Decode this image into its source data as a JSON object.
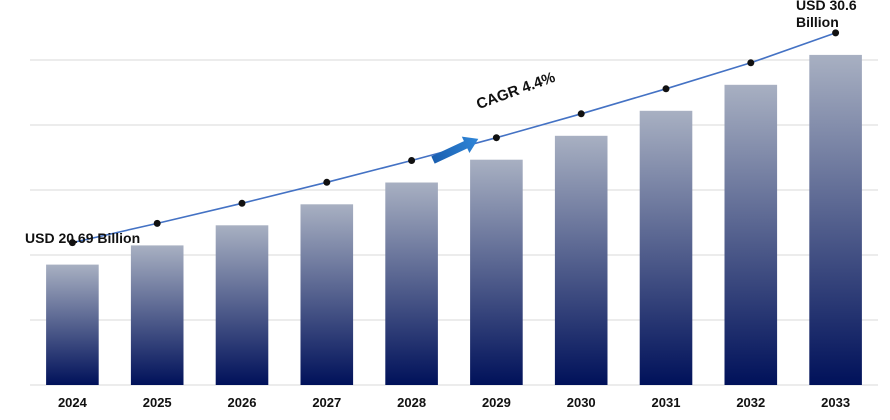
{
  "chart_data": {
    "type": "bar",
    "categories": [
      "2024",
      "2025",
      "2026",
      "2027",
      "2028",
      "2029",
      "2030",
      "2031",
      "2032",
      "2033"
    ],
    "values": [
      20.69,
      21.6,
      22.55,
      23.54,
      24.57,
      25.65,
      26.78,
      27.96,
      29.19,
      30.6
    ],
    "trend_line": true,
    "ylim": [
      15,
      31.4
    ],
    "grid": true,
    "xlabel": "",
    "ylabel": "",
    "annotations": {
      "start": "USD 20.69 Billion",
      "end_line1": "USD 30.6",
      "end_line2": "Billion",
      "cagr": "CAGR 4.4%"
    },
    "colors": {
      "bar_top": "#a8b0c2",
      "bar_bottom": "#00115a",
      "line": "#4472c4",
      "marker": "#111111",
      "arrow": "#1f6fc5",
      "grid": "#d9d9d9"
    }
  }
}
